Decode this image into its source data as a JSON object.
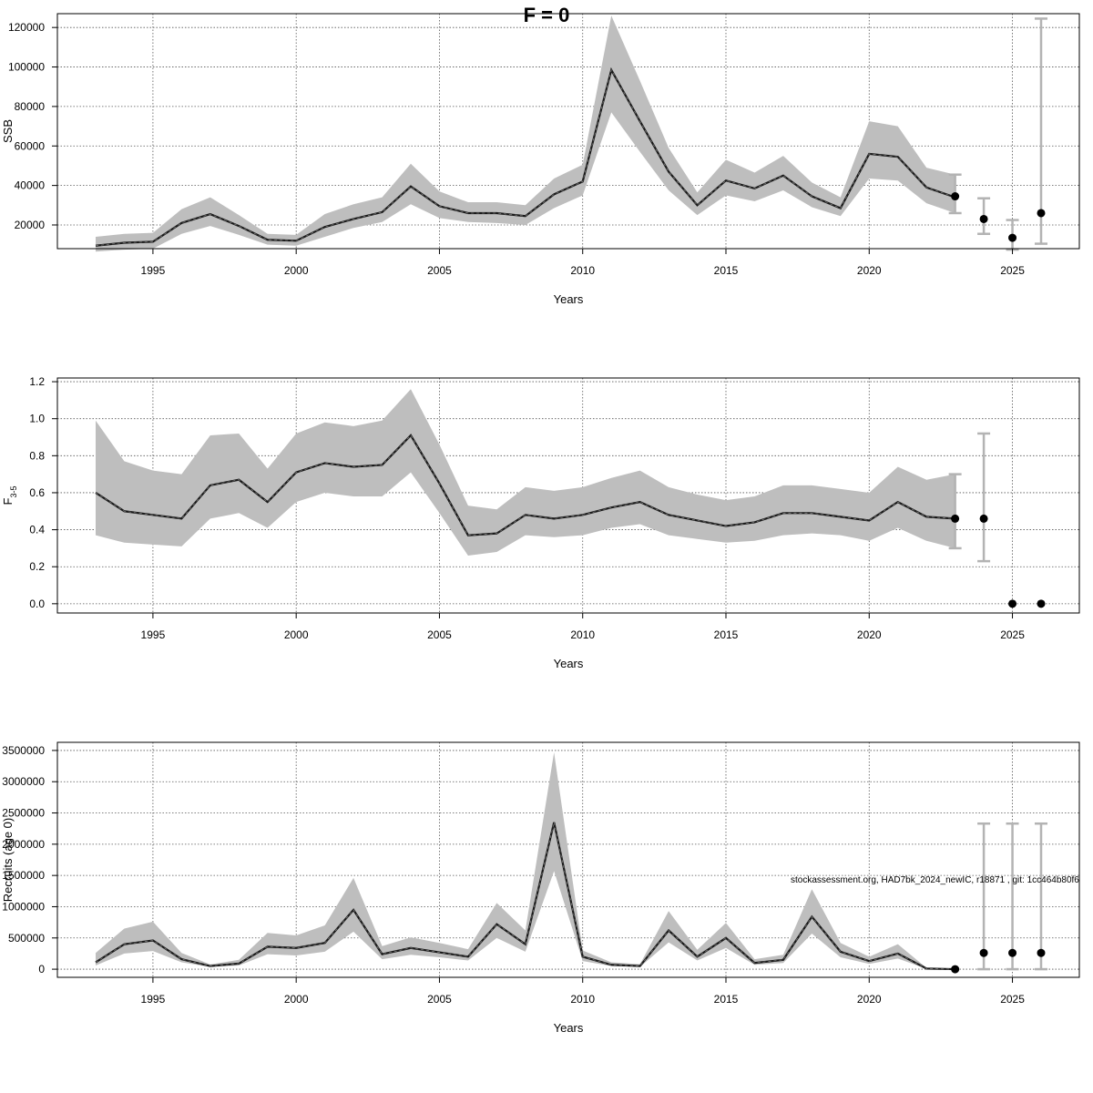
{
  "title": "F = 0",
  "footnote": "stockassessment.org, HAD7bk_2024_newIC, r18871 , git: 1cc464b80f6",
  "colors": {
    "band": "#bebebe",
    "line": "#1a1a1a",
    "errorbar": "#b3b3b3",
    "point": "#000000",
    "grid": "#555555"
  },
  "chart_data": [
    {
      "type": "line",
      "id": "ssb",
      "xlabel": "Years",
      "ylabel": "SSB",
      "xlim": [
        1993,
        2026
      ],
      "ylim": [
        8000,
        127000
      ],
      "xticks": [
        1995,
        2000,
        2005,
        2010,
        2015,
        2020,
        2025
      ],
      "yticks": [
        20000,
        40000,
        60000,
        80000,
        100000,
        120000
      ],
      "ytick_labels": [
        "20000",
        "40000",
        "60000",
        "80000",
        "100000",
        "120000"
      ],
      "years": [
        1993,
        1994,
        1995,
        1996,
        1997,
        1998,
        1999,
        2000,
        2001,
        2002,
        2003,
        2004,
        2005,
        2006,
        2007,
        2008,
        2009,
        2010,
        2011,
        2012,
        2013,
        2014,
        2015,
        2016,
        2017,
        2018,
        2019,
        2020,
        2021,
        2022,
        2023
      ],
      "estimate": [
        9500,
        11000,
        11500,
        21000,
        25500,
        19500,
        12500,
        12000,
        19000,
        23000,
        26500,
        39500,
        29500,
        26000,
        26000,
        24500,
        35500,
        42000,
        98500,
        72500,
        47000,
        30000,
        42500,
        38500,
        45000,
        34500,
        28500,
        56000,
        54500,
        39000,
        34000
      ],
      "lower": [
        6500,
        7500,
        8000,
        15500,
        19500,
        15000,
        10000,
        9500,
        14000,
        18500,
        21500,
        30500,
        23500,
        21500,
        21000,
        20000,
        28500,
        35000,
        77000,
        57000,
        37500,
        25000,
        35000,
        32000,
        37500,
        29000,
        24500,
        43500,
        42500,
        31000,
        26000
      ],
      "upper": [
        14000,
        15500,
        16000,
        28000,
        34000,
        25000,
        15500,
        15000,
        25500,
        30500,
        34000,
        51000,
        37000,
        31500,
        31500,
        30000,
        43500,
        50500,
        126000,
        93000,
        59000,
        36500,
        53000,
        46500,
        55000,
        41500,
        34000,
        72500,
        70000,
        49000,
        45500
      ],
      "forecast": [
        {
          "year": 2023,
          "value": 34500,
          "low": 26000,
          "high": 45500
        },
        {
          "year": 2024,
          "value": 23000,
          "low": 15500,
          "high": 33500
        },
        {
          "year": 2025,
          "value": 13500,
          "low": 7500,
          "high": 22500
        },
        {
          "year": 2026,
          "value": 26000,
          "low": 10500,
          "high": 124500
        }
      ]
    },
    {
      "type": "line",
      "id": "f35",
      "xlabel": "Years",
      "ylabel": "F",
      "ylabel_sub": "3-5",
      "xlim": [
        1993,
        2026
      ],
      "ylim": [
        -0.05,
        1.22
      ],
      "xticks": [
        1995,
        2000,
        2005,
        2010,
        2015,
        2020,
        2025
      ],
      "yticks": [
        0.0,
        0.2,
        0.4,
        0.6,
        0.8,
        1.0,
        1.2
      ],
      "ytick_labels": [
        "0.0",
        "0.2",
        "0.4",
        "0.6",
        "0.8",
        "1.0",
        "1.2"
      ],
      "years": [
        1993,
        1994,
        1995,
        1996,
        1997,
        1998,
        1999,
        2000,
        2001,
        2002,
        2003,
        2004,
        2005,
        2006,
        2007,
        2008,
        2009,
        2010,
        2011,
        2012,
        2013,
        2014,
        2015,
        2016,
        2017,
        2018,
        2019,
        2020,
        2021,
        2022,
        2023
      ],
      "estimate": [
        0.6,
        0.5,
        0.48,
        0.46,
        0.64,
        0.67,
        0.55,
        0.71,
        0.76,
        0.74,
        0.75,
        0.91,
        0.65,
        0.37,
        0.38,
        0.48,
        0.46,
        0.48,
        0.52,
        0.55,
        0.48,
        0.45,
        0.42,
        0.44,
        0.49,
        0.49,
        0.47,
        0.45,
        0.55,
        0.47,
        0.46
      ],
      "lower": [
        0.37,
        0.33,
        0.32,
        0.31,
        0.46,
        0.49,
        0.41,
        0.55,
        0.6,
        0.58,
        0.58,
        0.71,
        0.49,
        0.26,
        0.28,
        0.37,
        0.36,
        0.37,
        0.41,
        0.43,
        0.37,
        0.35,
        0.33,
        0.34,
        0.37,
        0.38,
        0.37,
        0.34,
        0.41,
        0.34,
        0.3
      ],
      "upper": [
        0.99,
        0.77,
        0.72,
        0.7,
        0.91,
        0.92,
        0.73,
        0.92,
        0.98,
        0.96,
        0.99,
        1.16,
        0.86,
        0.53,
        0.51,
        0.63,
        0.61,
        0.63,
        0.68,
        0.72,
        0.63,
        0.59,
        0.56,
        0.58,
        0.64,
        0.64,
        0.62,
        0.6,
        0.74,
        0.67,
        0.7
      ],
      "forecast": [
        {
          "year": 2023,
          "value": 0.46,
          "low": 0.3,
          "high": 0.7
        },
        {
          "year": 2024,
          "value": 0.46,
          "low": 0.23,
          "high": 0.92
        },
        {
          "year": 2025,
          "value": 0.0,
          "low": 0.0,
          "high": 0.0
        },
        {
          "year": 2026,
          "value": 0.0,
          "low": 0.0,
          "high": 0.0
        }
      ]
    },
    {
      "type": "line",
      "id": "recruits",
      "xlabel": "Years",
      "ylabel": "Recruits (age 0)",
      "xlim": [
        1993,
        2026
      ],
      "ylim": [
        -130000,
        3630000
      ],
      "xticks": [
        1995,
        2000,
        2005,
        2010,
        2015,
        2020,
        2025
      ],
      "yticks": [
        0,
        500000,
        1000000,
        1500000,
        2000000,
        2500000,
        3000000,
        3500000
      ],
      "ytick_labels": [
        "0",
        "500000",
        "1000000",
        "1500000",
        "2000000",
        "2500000",
        "3000000",
        "3500000"
      ],
      "years": [
        1993,
        1994,
        1995,
        1996,
        1997,
        1998,
        1999,
        2000,
        2001,
        2002,
        2003,
        2004,
        2005,
        2006,
        2007,
        2008,
        2009,
        2010,
        2011,
        2012,
        2013,
        2014,
        2015,
        2016,
        2017,
        2018,
        2019,
        2020,
        2021,
        2022,
        2023
      ],
      "estimate": [
        110000,
        400000,
        460000,
        160000,
        50000,
        90000,
        360000,
        340000,
        420000,
        950000,
        240000,
        340000,
        270000,
        200000,
        720000,
        400000,
        2350000,
        200000,
        70000,
        50000,
        620000,
        200000,
        500000,
        100000,
        150000,
        840000,
        280000,
        130000,
        250000,
        10000,
        0
      ],
      "lower": [
        60000,
        250000,
        290000,
        110000,
        35000,
        60000,
        240000,
        220000,
        280000,
        600000,
        160000,
        230000,
        190000,
        140000,
        500000,
        280000,
        1570000,
        130000,
        50000,
        35000,
        430000,
        140000,
        340000,
        70000,
        100000,
        570000,
        190000,
        85000,
        170000,
        5000,
        0
      ],
      "upper": [
        260000,
        650000,
        760000,
        260000,
        75000,
        150000,
        580000,
        540000,
        700000,
        1460000,
        370000,
        510000,
        420000,
        320000,
        1060000,
        620000,
        3470000,
        300000,
        110000,
        80000,
        930000,
        310000,
        740000,
        160000,
        230000,
        1280000,
        420000,
        200000,
        400000,
        20000,
        0
      ],
      "forecast": [
        {
          "year": 2023,
          "value": 0,
          "low": 0,
          "high": 0
        },
        {
          "year": 2024,
          "value": 260000,
          "low": 0,
          "high": 2330000
        },
        {
          "year": 2025,
          "value": 260000,
          "low": 0,
          "high": 2330000
        },
        {
          "year": 2026,
          "value": 260000,
          "low": 0,
          "high": 2330000
        }
      ]
    }
  ]
}
